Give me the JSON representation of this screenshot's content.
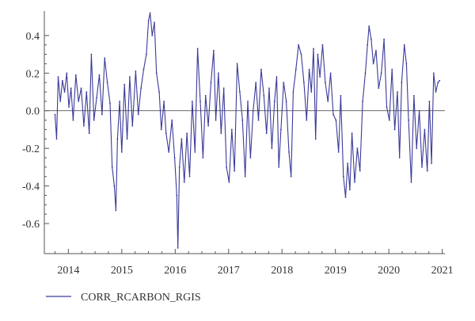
{
  "chart_data": {
    "type": "line",
    "title": "",
    "xlabel": "",
    "ylabel": "",
    "xlim": [
      2013.55,
      2021.05
    ],
    "ylim": [
      -0.76,
      0.53
    ],
    "grid": false,
    "legend_position": "bottom-left",
    "x_ticks": [
      {
        "value": 2014,
        "label": "2014"
      },
      {
        "value": 2015,
        "label": "2015"
      },
      {
        "value": 2016,
        "label": "2016"
      },
      {
        "value": 2017,
        "label": "2017"
      },
      {
        "value": 2018,
        "label": "2018"
      },
      {
        "value": 2019,
        "label": "2019"
      },
      {
        "value": 2020,
        "label": "2020"
      },
      {
        "value": 2021,
        "label": "2021"
      }
    ],
    "y_ticks": [
      {
        "value": 0.4,
        "label": "0.4"
      },
      {
        "value": 0.2,
        "label": "0.2"
      },
      {
        "value": 0.0,
        "label": "0.0"
      },
      {
        "value": -0.2,
        "label": "-0.2"
      },
      {
        "value": -0.4,
        "label": "-0.4"
      },
      {
        "value": -0.6,
        "label": "-0.6"
      }
    ],
    "reference_line_y": 0.0,
    "series": [
      {
        "name": "CORR_RCARBON_RGIS",
        "color": "#3a3a9a",
        "points": [
          [
            2013.75,
            -0.02
          ],
          [
            2013.78,
            -0.15
          ],
          [
            2013.81,
            0.18
          ],
          [
            2013.85,
            0.05
          ],
          [
            2013.89,
            0.16
          ],
          [
            2013.93,
            0.1
          ],
          [
            2013.97,
            0.2
          ],
          [
            2014.01,
            0.02
          ],
          [
            2014.05,
            0.12
          ],
          [
            2014.09,
            -0.05
          ],
          [
            2014.14,
            0.19
          ],
          [
            2014.19,
            0.05
          ],
          [
            2014.24,
            0.12
          ],
          [
            2014.29,
            -0.08
          ],
          [
            2014.34,
            0.1
          ],
          [
            2014.39,
            -0.12
          ],
          [
            2014.43,
            0.3
          ],
          [
            2014.48,
            -0.05
          ],
          [
            2014.53,
            0.07
          ],
          [
            2014.58,
            0.19
          ],
          [
            2014.63,
            -0.02
          ],
          [
            2014.68,
            0.28
          ],
          [
            2014.73,
            0.15
          ],
          [
            2014.78,
            0.04
          ],
          [
            2014.82,
            -0.3
          ],
          [
            2014.86,
            -0.4
          ],
          [
            2014.89,
            -0.53
          ],
          [
            2014.92,
            -0.15
          ],
          [
            2014.96,
            0.05
          ],
          [
            2015.0,
            -0.22
          ],
          [
            2015.05,
            0.14
          ],
          [
            2015.1,
            -0.15
          ],
          [
            2015.15,
            0.18
          ],
          [
            2015.2,
            -0.08
          ],
          [
            2015.26,
            0.21
          ],
          [
            2015.31,
            -0.02
          ],
          [
            2015.36,
            0.12
          ],
          [
            2015.41,
            0.22
          ],
          [
            2015.46,
            0.3
          ],
          [
            2015.5,
            0.48
          ],
          [
            2015.53,
            0.52
          ],
          [
            2015.57,
            0.4
          ],
          [
            2015.61,
            0.47
          ],
          [
            2015.65,
            0.2
          ],
          [
            2015.7,
            0.1
          ],
          [
            2015.74,
            -0.1
          ],
          [
            2015.79,
            0.05
          ],
          [
            2015.83,
            -0.12
          ],
          [
            2015.88,
            -0.22
          ],
          [
            2015.94,
            -0.05
          ],
          [
            2015.99,
            -0.25
          ],
          [
            2016.03,
            -0.45
          ],
          [
            2016.05,
            -0.73
          ],
          [
            2016.08,
            -0.3
          ],
          [
            2016.12,
            -0.15
          ],
          [
            2016.17,
            -0.38
          ],
          [
            2016.22,
            -0.12
          ],
          [
            2016.27,
            -0.35
          ],
          [
            2016.32,
            0.05
          ],
          [
            2016.37,
            -0.22
          ],
          [
            2016.42,
            0.33
          ],
          [
            2016.47,
            0.05
          ],
          [
            2016.52,
            -0.25
          ],
          [
            2016.57,
            0.08
          ],
          [
            2016.62,
            -0.08
          ],
          [
            2016.67,
            0.15
          ],
          [
            2016.72,
            0.32
          ],
          [
            2016.76,
            -0.05
          ],
          [
            2016.81,
            0.2
          ],
          [
            2016.86,
            -0.12
          ],
          [
            2016.91,
            0.12
          ],
          [
            2016.96,
            -0.3
          ],
          [
            2017.01,
            -0.38
          ],
          [
            2017.06,
            -0.1
          ],
          [
            2017.11,
            -0.32
          ],
          [
            2017.16,
            0.25
          ],
          [
            2017.21,
            0.1
          ],
          [
            2017.26,
            -0.05
          ],
          [
            2017.31,
            -0.35
          ],
          [
            2017.36,
            0.05
          ],
          [
            2017.41,
            -0.25
          ],
          [
            2017.46,
            0.0
          ],
          [
            2017.51,
            0.15
          ],
          [
            2017.56,
            -0.05
          ],
          [
            2017.61,
            0.22
          ],
          [
            2017.66,
            0.08
          ],
          [
            2017.71,
            -0.12
          ],
          [
            2017.76,
            0.12
          ],
          [
            2017.81,
            -0.2
          ],
          [
            2017.86,
            0.05
          ],
          [
            2017.9,
            0.18
          ],
          [
            2017.94,
            -0.3
          ],
          [
            2017.98,
            -0.1
          ],
          [
            2018.03,
            0.15
          ],
          [
            2018.08,
            0.05
          ],
          [
            2018.13,
            -0.22
          ],
          [
            2018.17,
            -0.35
          ],
          [
            2018.21,
            0.1
          ],
          [
            2018.26,
            0.22
          ],
          [
            2018.31,
            0.35
          ],
          [
            2018.36,
            0.3
          ],
          [
            2018.41,
            0.15
          ],
          [
            2018.46,
            -0.05
          ],
          [
            2018.51,
            0.22
          ],
          [
            2018.55,
            0.1
          ],
          [
            2018.59,
            0.33
          ],
          [
            2018.63,
            -0.15
          ],
          [
            2018.67,
            0.3
          ],
          [
            2018.71,
            0.18
          ],
          [
            2018.76,
            0.35
          ],
          [
            2018.81,
            0.15
          ],
          [
            2018.86,
            0.05
          ],
          [
            2018.91,
            0.2
          ],
          [
            2018.96,
            -0.02
          ],
          [
            2019.01,
            -0.05
          ],
          [
            2019.06,
            -0.22
          ],
          [
            2019.1,
            0.08
          ],
          [
            2019.15,
            -0.35
          ],
          [
            2019.19,
            -0.46
          ],
          [
            2019.23,
            -0.28
          ],
          [
            2019.27,
            -0.42
          ],
          [
            2019.31,
            -0.12
          ],
          [
            2019.36,
            -0.38
          ],
          [
            2019.41,
            -0.2
          ],
          [
            2019.46,
            -0.32
          ],
          [
            2019.51,
            0.05
          ],
          [
            2019.56,
            0.2
          ],
          [
            2019.6,
            0.35
          ],
          [
            2019.63,
            0.45
          ],
          [
            2019.67,
            0.38
          ],
          [
            2019.71,
            0.25
          ],
          [
            2019.76,
            0.32
          ],
          [
            2019.81,
            0.12
          ],
          [
            2019.86,
            0.2
          ],
          [
            2019.91,
            0.38
          ],
          [
            2019.96,
            0.02
          ],
          [
            2020.01,
            -0.05
          ],
          [
            2020.06,
            0.22
          ],
          [
            2020.11,
            -0.1
          ],
          [
            2020.16,
            0.1
          ],
          [
            2020.2,
            -0.25
          ],
          [
            2020.24,
            0.15
          ],
          [
            2020.29,
            0.35
          ],
          [
            2020.33,
            0.25
          ],
          [
            2020.37,
            -0.05
          ],
          [
            2020.42,
            -0.38
          ],
          [
            2020.47,
            0.08
          ],
          [
            2020.52,
            -0.2
          ],
          [
            2020.57,
            0.0
          ],
          [
            2020.62,
            -0.3
          ],
          [
            2020.67,
            -0.1
          ],
          [
            2020.72,
            -0.32
          ],
          [
            2020.76,
            0.05
          ],
          [
            2020.8,
            -0.28
          ],
          [
            2020.84,
            0.2
          ],
          [
            2020.88,
            0.1
          ],
          [
            2020.92,
            0.15
          ],
          [
            2020.95,
            0.16
          ]
        ]
      }
    ]
  }
}
